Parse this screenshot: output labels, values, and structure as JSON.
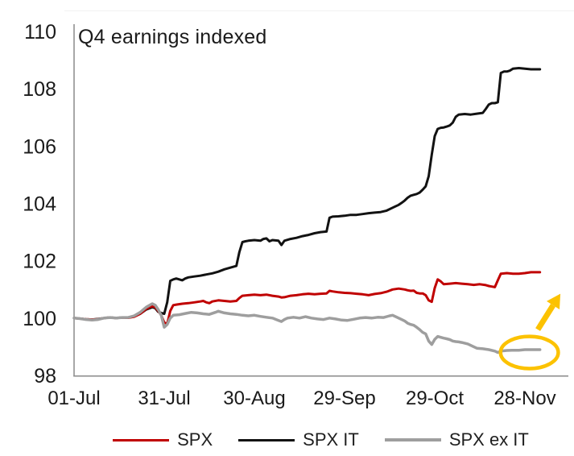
{
  "page": {
    "background": "#ffffff"
  },
  "chart_data": {
    "type": "line",
    "title": "Q4 earnings indexed",
    "grid": false,
    "legend_position": "bottom",
    "x_axis": {
      "tick_labels": [
        "01-Jul",
        "31-Jul",
        "30-Aug",
        "29-Sep",
        "29-Oct",
        "28-Nov"
      ],
      "tick_days": [
        0,
        30,
        60,
        90,
        120,
        150
      ],
      "domain_days": [
        0,
        155
      ]
    },
    "y_axis": {
      "tick_labels": [
        "98",
        "100",
        "102",
        "104",
        "106",
        "108",
        "110"
      ],
      "tick_values": [
        98,
        100,
        102,
        104,
        106,
        108,
        110
      ],
      "min": 98,
      "max": 110
    },
    "draw_order": [
      1,
      0,
      2
    ],
    "series": [
      {
        "name": "SPX",
        "color": "#c00000",
        "width": 3,
        "points": [
          [
            0,
            100
          ],
          [
            2,
            99.98
          ],
          [
            4,
            99.96
          ],
          [
            6,
            99.95
          ],
          [
            8,
            99.96
          ],
          [
            10,
            100
          ],
          [
            12,
            100.02
          ],
          [
            14,
            100
          ],
          [
            16,
            100.02
          ],
          [
            18,
            100.01
          ],
          [
            20,
            100.05
          ],
          [
            22,
            100.15
          ],
          [
            24,
            100.32
          ],
          [
            26,
            100.42
          ],
          [
            27,
            100.38
          ],
          [
            28,
            100.25
          ],
          [
            29,
            100.1
          ],
          [
            30,
            99.85
          ],
          [
            31,
            99.8
          ],
          [
            32,
            100.25
          ],
          [
            33,
            100.45
          ],
          [
            34,
            100.47
          ],
          [
            36,
            100.5
          ],
          [
            38,
            100.52
          ],
          [
            40,
            100.55
          ],
          [
            42,
            100.58
          ],
          [
            43,
            100.6
          ],
          [
            44,
            100.55
          ],
          [
            45,
            100.52
          ],
          [
            46,
            100.58
          ],
          [
            48,
            100.62
          ],
          [
            50,
            100.6
          ],
          [
            52,
            100.58
          ],
          [
            54,
            100.6
          ],
          [
            55,
            100.7
          ],
          [
            56,
            100.78
          ],
          [
            58,
            100.8
          ],
          [
            60,
            100.82
          ],
          [
            62,
            100.8
          ],
          [
            64,
            100.82
          ],
          [
            66,
            100.78
          ],
          [
            68,
            100.75
          ],
          [
            69,
            100.72
          ],
          [
            70,
            100.73
          ],
          [
            72,
            100.78
          ],
          [
            74,
            100.8
          ],
          [
            76,
            100.83
          ],
          [
            78,
            100.85
          ],
          [
            80,
            100.83
          ],
          [
            82,
            100.85
          ],
          [
            84,
            100.86
          ],
          [
            85,
            100.95
          ],
          [
            86,
            100.93
          ],
          [
            88,
            100.9
          ],
          [
            90,
            100.88
          ],
          [
            92,
            100.87
          ],
          [
            94,
            100.85
          ],
          [
            96,
            100.83
          ],
          [
            98,
            100.8
          ],
          [
            100,
            100.84
          ],
          [
            102,
            100.87
          ],
          [
            104,
            100.92
          ],
          [
            106,
            101
          ],
          [
            108,
            101.03
          ],
          [
            110,
            101
          ],
          [
            111,
            100.97
          ],
          [
            112,
            100.95
          ],
          [
            113,
            100.96
          ],
          [
            114,
            100.88
          ],
          [
            115,
            100.86
          ],
          [
            116,
            100.86
          ],
          [
            117,
            100.8
          ],
          [
            118,
            100.62
          ],
          [
            119,
            100.57
          ],
          [
            120,
            101.05
          ],
          [
            121,
            101.35
          ],
          [
            122,
            101.28
          ],
          [
            123,
            101.18
          ],
          [
            125,
            101.2
          ],
          [
            127,
            101.22
          ],
          [
            129,
            101.2
          ],
          [
            131,
            101.18
          ],
          [
            133,
            101.16
          ],
          [
            135,
            101.18
          ],
          [
            137,
            101.15
          ],
          [
            138,
            101.12
          ],
          [
            139,
            101.1
          ],
          [
            140,
            101.08
          ],
          [
            141,
            101.32
          ],
          [
            142,
            101.55
          ],
          [
            144,
            101.57
          ],
          [
            146,
            101.55
          ],
          [
            148,
            101.55
          ],
          [
            150,
            101.57
          ],
          [
            152,
            101.6
          ],
          [
            155,
            101.6
          ]
        ]
      },
      {
        "name": "SPX IT",
        "color": "#121212",
        "width": 3,
        "points": [
          [
            0,
            100
          ],
          [
            2,
            99.98
          ],
          [
            4,
            99.96
          ],
          [
            6,
            99.95
          ],
          [
            8,
            99.97
          ],
          [
            10,
            100
          ],
          [
            12,
            100.02
          ],
          [
            14,
            100
          ],
          [
            16,
            100.02
          ],
          [
            18,
            100.02
          ],
          [
            20,
            100.06
          ],
          [
            22,
            100.15
          ],
          [
            24,
            100.3
          ],
          [
            26,
            100.38
          ],
          [
            27,
            100.35
          ],
          [
            28,
            100.22
          ],
          [
            29,
            100.18
          ],
          [
            30,
            100.15
          ],
          [
            31,
            100.55
          ],
          [
            32,
            101.3
          ],
          [
            33,
            101.35
          ],
          [
            34,
            101.38
          ],
          [
            35,
            101.35
          ],
          [
            36,
            101.32
          ],
          [
            37,
            101.38
          ],
          [
            38,
            101.42
          ],
          [
            40,
            101.45
          ],
          [
            42,
            101.48
          ],
          [
            44,
            101.52
          ],
          [
            46,
            101.56
          ],
          [
            48,
            101.62
          ],
          [
            50,
            101.7
          ],
          [
            52,
            101.76
          ],
          [
            54,
            101.82
          ],
          [
            55,
            102.3
          ],
          [
            56,
            102.65
          ],
          [
            57,
            102.68
          ],
          [
            58,
            102.7
          ],
          [
            60,
            102.72
          ],
          [
            62,
            102.7
          ],
          [
            63,
            102.76
          ],
          [
            64,
            102.78
          ],
          [
            65,
            102.68
          ],
          [
            66,
            102.72
          ],
          [
            68,
            102.7
          ],
          [
            69,
            102.55
          ],
          [
            70,
            102.7
          ],
          [
            72,
            102.76
          ],
          [
            74,
            102.8
          ],
          [
            76,
            102.86
          ],
          [
            78,
            102.9
          ],
          [
            80,
            102.96
          ],
          [
            82,
            103
          ],
          [
            84,
            103.02
          ],
          [
            85,
            103.5
          ],
          [
            86,
            103.54
          ],
          [
            88,
            103.55
          ],
          [
            90,
            103.57
          ],
          [
            92,
            103.6
          ],
          [
            94,
            103.6
          ],
          [
            96,
            103.63
          ],
          [
            98,
            103.66
          ],
          [
            100,
            103.68
          ],
          [
            102,
            103.7
          ],
          [
            104,
            103.75
          ],
          [
            106,
            103.85
          ],
          [
            108,
            103.95
          ],
          [
            109,
            104.02
          ],
          [
            110,
            104.1
          ],
          [
            111,
            104.2
          ],
          [
            112,
            104.27
          ],
          [
            113,
            104.3
          ],
          [
            114,
            104.33
          ],
          [
            115,
            104.38
          ],
          [
            116,
            104.48
          ],
          [
            117,
            104.6
          ],
          [
            118,
            104.95
          ],
          [
            119,
            105.7
          ],
          [
            120,
            106.35
          ],
          [
            121,
            106.6
          ],
          [
            122,
            106.64
          ],
          [
            123,
            106.65
          ],
          [
            124,
            106.68
          ],
          [
            125,
            106.72
          ],
          [
            126,
            106.82
          ],
          [
            127,
            107.02
          ],
          [
            128,
            107.1
          ],
          [
            130,
            107.12
          ],
          [
            132,
            107.1
          ],
          [
            134,
            107.13
          ],
          [
            136,
            107.16
          ],
          [
            137,
            107.3
          ],
          [
            138,
            107.45
          ],
          [
            139,
            107.5
          ],
          [
            140,
            107.5
          ],
          [
            141,
            107.53
          ],
          [
            142,
            108.55
          ],
          [
            143,
            108.6
          ],
          [
            144,
            108.6
          ],
          [
            145,
            108.63
          ],
          [
            146,
            108.7
          ],
          [
            148,
            108.72
          ],
          [
            150,
            108.7
          ],
          [
            152,
            108.68
          ],
          [
            155,
            108.68
          ]
        ]
      },
      {
        "name": "SPX ex IT",
        "color": "#9e9e9e",
        "width": 3.5,
        "points": [
          [
            0,
            100
          ],
          [
            2,
            99.98
          ],
          [
            4,
            99.95
          ],
          [
            6,
            99.93
          ],
          [
            8,
            99.95
          ],
          [
            10,
            100
          ],
          [
            12,
            100.02
          ],
          [
            14,
            100
          ],
          [
            16,
            100.02
          ],
          [
            18,
            100.02
          ],
          [
            20,
            100.08
          ],
          [
            22,
            100.2
          ],
          [
            24,
            100.38
          ],
          [
            26,
            100.5
          ],
          [
            27,
            100.45
          ],
          [
            28,
            100.3
          ],
          [
            29,
            100.1
          ],
          [
            30,
            99.68
          ],
          [
            31,
            99.78
          ],
          [
            32,
            100
          ],
          [
            33,
            100.1
          ],
          [
            35,
            100.12
          ],
          [
            37,
            100.16
          ],
          [
            39,
            100.2
          ],
          [
            41,
            100.18
          ],
          [
            43,
            100.15
          ],
          [
            45,
            100.13
          ],
          [
            47,
            100.2
          ],
          [
            48,
            100.24
          ],
          [
            50,
            100.18
          ],
          [
            52,
            100.15
          ],
          [
            54,
            100.13
          ],
          [
            56,
            100.1
          ],
          [
            58,
            100.08
          ],
          [
            60,
            100.1
          ],
          [
            62,
            100.06
          ],
          [
            64,
            100.03
          ],
          [
            66,
            100
          ],
          [
            68,
            99.92
          ],
          [
            69,
            99.88
          ],
          [
            70,
            99.95
          ],
          [
            71,
            100
          ],
          [
            73,
            100.03
          ],
          [
            75,
            100
          ],
          [
            77,
            100.05
          ],
          [
            79,
            100
          ],
          [
            81,
            99.97
          ],
          [
            83,
            99.95
          ],
          [
            85,
            100
          ],
          [
            87,
            99.97
          ],
          [
            89,
            99.93
          ],
          [
            91,
            99.92
          ],
          [
            93,
            99.96
          ],
          [
            95,
            100
          ],
          [
            97,
            100.02
          ],
          [
            99,
            100
          ],
          [
            101,
            100.03
          ],
          [
            103,
            100.02
          ],
          [
            105,
            100.08
          ],
          [
            106,
            100.1
          ],
          [
            107,
            100.05
          ],
          [
            108,
            100
          ],
          [
            109,
            99.95
          ],
          [
            110,
            99.9
          ],
          [
            111,
            99.82
          ],
          [
            112,
            99.78
          ],
          [
            113,
            99.75
          ],
          [
            114,
            99.68
          ],
          [
            115,
            99.6
          ],
          [
            116,
            99.5
          ],
          [
            117,
            99.45
          ],
          [
            118,
            99.2
          ],
          [
            119,
            99.08
          ],
          [
            120,
            99.26
          ],
          [
            121,
            99.36
          ],
          [
            122,
            99.33
          ],
          [
            123,
            99.3
          ],
          [
            124,
            99.28
          ],
          [
            125,
            99.25
          ],
          [
            126,
            99.2
          ],
          [
            127,
            99.18
          ],
          [
            128,
            99.17
          ],
          [
            129,
            99.15
          ],
          [
            131,
            99.1
          ],
          [
            133,
            99
          ],
          [
            134,
            98.95
          ],
          [
            136,
            98.93
          ],
          [
            138,
            98.9
          ],
          [
            140,
            98.85
          ],
          [
            141,
            98.8
          ],
          [
            142,
            98.85
          ],
          [
            144,
            98.87
          ],
          [
            146,
            98.88
          ],
          [
            148,
            98.88
          ],
          [
            150,
            98.9
          ],
          [
            152,
            98.9
          ],
          [
            155,
            98.9
          ]
        ]
      }
    ],
    "annotations": {
      "color": "#fcc200",
      "ellipse": {
        "center_day": 151.5,
        "center_value": 98.8,
        "radius_days": 9.6,
        "radius_value": 0.56
      },
      "arrow": {
        "from_day": 154.3,
        "from_value": 99.6,
        "to_day": 161.8,
        "to_value": 100.85
      }
    },
    "axis_color": "#8a8a8a"
  }
}
